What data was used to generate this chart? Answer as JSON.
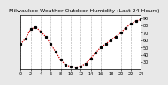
{
  "title": "Milwaukee Weather Outdoor Humidity (Last 24 Hours)",
  "x_values": [
    0,
    1,
    2,
    3,
    4,
    5,
    6,
    7,
    8,
    9,
    10,
    11,
    12,
    13,
    14,
    15,
    16,
    17,
    18,
    19,
    20,
    21,
    22,
    23,
    24
  ],
  "y_values": [
    55,
    62,
    75,
    78,
    72,
    65,
    55,
    44,
    33,
    26,
    24,
    23,
    24,
    28,
    35,
    43,
    50,
    55,
    60,
    65,
    70,
    77,
    82,
    86,
    88
  ],
  "line_color": "#cc0000",
  "marker_color": "#000000",
  "bg_color": "#e8e8e8",
  "plot_bg": "#ffffff",
  "ylim": [
    20,
    95
  ],
  "xlim": [
    0,
    24
  ],
  "ytick_values": [
    30,
    40,
    50,
    60,
    70,
    80,
    90
  ],
  "xtick_values": [
    0,
    2,
    4,
    6,
    8,
    10,
    12,
    14,
    16,
    18,
    20,
    22,
    24
  ],
  "grid_color": "#aaaaaa",
  "title_fontsize": 4.5,
  "tick_fontsize": 3.5,
  "ylabel": "",
  "xlabel": ""
}
